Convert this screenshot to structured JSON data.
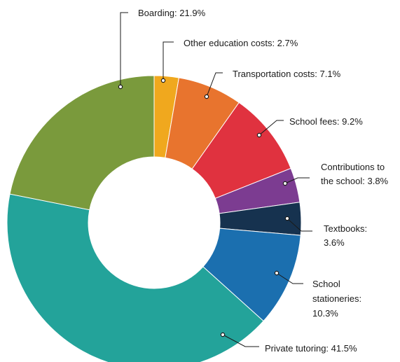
{
  "chart_data": {
    "type": "pie",
    "donut": true,
    "start": "top, clockwise",
    "slices": [
      {
        "name": "Other education costs",
        "value": 2.7,
        "color": "#F0A81E",
        "label_lines": [
          "Other education costs: 2.7%"
        ]
      },
      {
        "name": "Transportation costs",
        "value": 7.1,
        "color": "#E8742E",
        "label_lines": [
          "Transportation costs: 7.1%"
        ]
      },
      {
        "name": "School fees",
        "value": 9.2,
        "color": "#E0323F",
        "label_lines": [
          "School fees: 9.2%"
        ]
      },
      {
        "name": "Contributions to the school",
        "value": 3.8,
        "color": "#7C3C91",
        "label_lines": [
          "Contributions to",
          "the school: 3.8%"
        ]
      },
      {
        "name": "Textbooks",
        "value": 3.6,
        "color": "#16324F",
        "label_lines": [
          "Textbooks:",
          "3.6%"
        ]
      },
      {
        "name": "School stationeries",
        "value": 10.3,
        "color": "#1B6FAF",
        "label_lines": [
          "School",
          "stationeries:",
          "10.3%"
        ]
      },
      {
        "name": "Private tutoring",
        "value": 41.5,
        "color": "#23A39A",
        "label_lines": [
          "Private tutoring: 41.5%"
        ]
      },
      {
        "name": "Boarding",
        "value": 21.9,
        "color": "#7A9A3C",
        "label_lines": [
          "Boarding: 21.9%"
        ]
      }
    ]
  }
}
